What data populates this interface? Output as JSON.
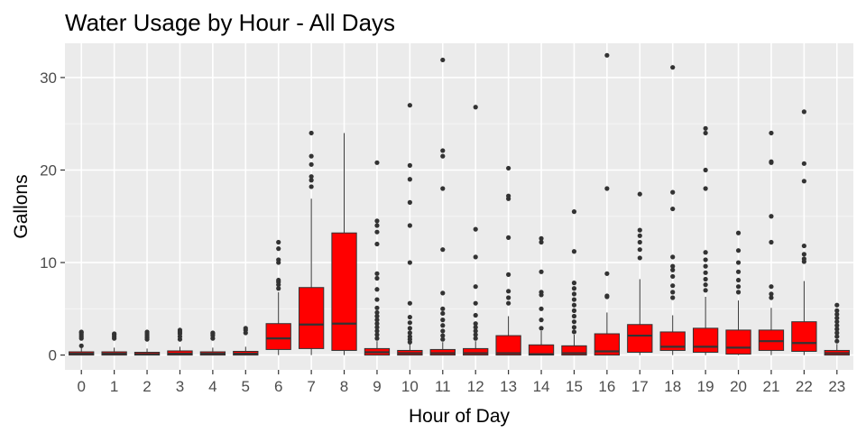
{
  "chart_data": {
    "type": "boxplot",
    "title": "Water Usage by Hour - All Days",
    "xlabel": "Hour of Day",
    "ylabel": "Gallons",
    "categories": [
      "0",
      "1",
      "2",
      "3",
      "4",
      "5",
      "6",
      "7",
      "8",
      "9",
      "10",
      "11",
      "12",
      "13",
      "14",
      "15",
      "16",
      "17",
      "18",
      "19",
      "20",
      "21",
      "22",
      "23"
    ],
    "y_ticks": [
      0,
      10,
      20,
      30
    ],
    "ylim": [
      -1.6,
      33.7
    ],
    "grid": true,
    "legend": "none",
    "colors": {
      "box_fill": "#ff0000",
      "box_stroke": "#333333",
      "panel_bg": "#ebebeb",
      "grid_major": "#ffffff",
      "grid_minor": "#f5f5f5",
      "tick_text": "#4d4d4d",
      "outlier": "#333333"
    },
    "boxes": [
      {
        "x": "0",
        "min": 0,
        "q1": 0,
        "median": 0.15,
        "q3": 0.35,
        "max": 0.8,
        "outliers": [
          1.0,
          1.8,
          2.0,
          2.2,
          2.4,
          2.5
        ]
      },
      {
        "x": "1",
        "min": 0,
        "q1": 0,
        "median": 0.15,
        "q3": 0.35,
        "max": 0.8,
        "outliers": [
          1.8,
          2.0,
          2.2,
          2.3
        ]
      },
      {
        "x": "2",
        "min": 0,
        "q1": 0,
        "median": 0.1,
        "q3": 0.3,
        "max": 0.7,
        "outliers": [
          1.7,
          1.9,
          2.1,
          2.3,
          2.5
        ]
      },
      {
        "x": "3",
        "min": 0,
        "q1": 0,
        "median": 0.15,
        "q3": 0.45,
        "max": 0.9,
        "outliers": [
          1.7,
          2.0,
          2.3,
          2.5,
          2.7
        ]
      },
      {
        "x": "4",
        "min": 0,
        "q1": 0,
        "median": 0.15,
        "q3": 0.35,
        "max": 0.8,
        "outliers": [
          1.8,
          2.1,
          2.3,
          2.4
        ]
      },
      {
        "x": "5",
        "min": 0,
        "q1": 0,
        "median": 0.15,
        "q3": 0.4,
        "max": 0.9,
        "outliers": [
          2.4,
          2.7,
          2.9
        ]
      },
      {
        "x": "6",
        "min": 0,
        "q1": 0.6,
        "median": 1.8,
        "q3": 3.4,
        "max": 6.8,
        "outliers": [
          7.2,
          7.6,
          7.9,
          8.1,
          10.0,
          10.3,
          11.5,
          12.2
        ]
      },
      {
        "x": "7",
        "min": 0,
        "q1": 0.7,
        "median": 3.3,
        "q3": 7.3,
        "max": 16.9,
        "outliers": [
          18.2,
          18.9,
          19.3,
          20.6,
          21.5,
          24.0
        ]
      },
      {
        "x": "8",
        "min": 0,
        "q1": 0.5,
        "median": 3.4,
        "q3": 13.2,
        "max": 24.0,
        "outliers": []
      },
      {
        "x": "9",
        "min": 0,
        "q1": 0,
        "median": 0.3,
        "q3": 0.7,
        "max": 1.5,
        "outliers": [
          1.8,
          2.2,
          2.6,
          3.0,
          3.4,
          3.8,
          4.2,
          4.6,
          5.1,
          6.0,
          7.1,
          8.3,
          8.8,
          12.0,
          13.3,
          14.0,
          14.5,
          20.8
        ]
      },
      {
        "x": "10",
        "min": 0,
        "q1": 0,
        "median": 0.2,
        "q3": 0.5,
        "max": 1.2,
        "outliers": [
          1.4,
          1.7,
          2.0,
          2.4,
          2.9,
          3.5,
          4.1,
          5.6,
          10.0,
          14.0,
          16.5,
          19.0,
          20.5,
          27.0
        ]
      },
      {
        "x": "11",
        "min": 0,
        "q1": 0,
        "median": 0.2,
        "q3": 0.6,
        "max": 1.4,
        "outliers": [
          1.7,
          2.1,
          2.6,
          3.2,
          3.8,
          4.5,
          5.0,
          6.7,
          11.4,
          18.0,
          21.5,
          22.1,
          31.9
        ]
      },
      {
        "x": "12",
        "min": 0,
        "q1": 0,
        "median": 0.2,
        "q3": 0.7,
        "max": 1.5,
        "outliers": [
          1.8,
          2.2,
          2.6,
          3.0,
          3.4,
          4.3,
          5.6,
          7.4,
          10.6,
          13.6,
          26.8
        ]
      },
      {
        "x": "13",
        "min": 0,
        "q1": 0,
        "median": 0.2,
        "q3": 2.1,
        "max": 4.2,
        "outliers": [
          5.6,
          6.2,
          6.9,
          8.7,
          12.7,
          16.9,
          17.2,
          20.2
        ]
      },
      {
        "x": "14",
        "min": 0,
        "q1": 0,
        "median": 0.1,
        "q3": 1.1,
        "max": 2.6,
        "outliers": [
          2.9,
          3.8,
          5.0,
          6.5,
          6.8,
          9.0,
          12.2,
          12.6
        ]
      },
      {
        "x": "15",
        "min": 0,
        "q1": 0,
        "median": 0.2,
        "q3": 1.0,
        "max": 2.2,
        "outliers": [
          2.5,
          3.0,
          3.6,
          4.2,
          4.8,
          5.4,
          6.0,
          6.6,
          7.2,
          7.8,
          11.2,
          15.5
        ]
      },
      {
        "x": "16",
        "min": 0,
        "q1": 0,
        "median": 0.4,
        "q3": 2.3,
        "max": 4.6,
        "outliers": [
          6.3,
          6.4,
          8.8,
          18.0,
          32.4
        ]
      },
      {
        "x": "17",
        "min": 0,
        "q1": 0.3,
        "median": 2.1,
        "q3": 3.3,
        "max": 8.2,
        "outliers": [
          10.5,
          11.4,
          12.2,
          12.9,
          13.5,
          17.4
        ]
      },
      {
        "x": "18",
        "min": 0,
        "q1": 0.5,
        "median": 0.9,
        "q3": 2.5,
        "max": 4.3,
        "outliers": [
          6.2,
          6.8,
          7.5,
          8.5,
          9.2,
          9.6,
          10.6,
          15.8,
          17.6,
          31.1
        ]
      },
      {
        "x": "19",
        "min": 0,
        "q1": 0.3,
        "median": 0.9,
        "q3": 2.9,
        "max": 6.3,
        "outliers": [
          7.0,
          7.6,
          8.2,
          8.9,
          9.6,
          10.3,
          11.1,
          18.0,
          20.0,
          24.0,
          24.5
        ]
      },
      {
        "x": "20",
        "min": 0,
        "q1": 0.1,
        "median": 0.8,
        "q3": 2.7,
        "max": 5.9,
        "outliers": [
          6.8,
          7.4,
          8.1,
          9.0,
          10.0,
          11.3,
          13.2
        ]
      },
      {
        "x": "21",
        "min": 0,
        "q1": 0.5,
        "median": 1.5,
        "q3": 2.7,
        "max": 5.1,
        "outliers": [
          6.2,
          6.6,
          7.4,
          12.2,
          15.0,
          20.8,
          20.9,
          24.0
        ]
      },
      {
        "x": "22",
        "min": 0,
        "q1": 0.4,
        "median": 1.3,
        "q3": 3.6,
        "max": 8.0,
        "outliers": [
          10.1,
          10.4,
          10.9,
          11.8,
          18.8,
          20.7,
          26.3
        ]
      },
      {
        "x": "23",
        "min": 0,
        "q1": 0,
        "median": 0.2,
        "q3": 0.5,
        "max": 1.2,
        "outliers": [
          1.5,
          2.0,
          2.4,
          2.8,
          3.2,
          3.6,
          4.0,
          4.4,
          4.8,
          5.4
        ]
      }
    ]
  }
}
